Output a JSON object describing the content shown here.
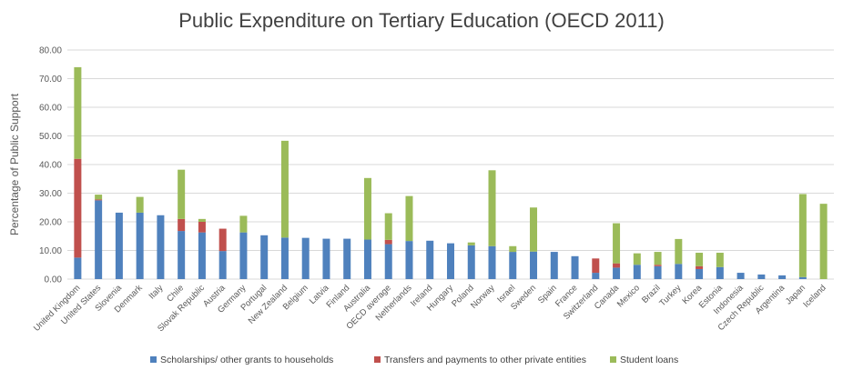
{
  "chart_data": {
    "type": "bar",
    "stacked": true,
    "title": "Public Expenditure on Tertiary Education (OECD 2011)",
    "xlabel": "",
    "ylabel": "Percentage of Public Support",
    "ylim": [
      0,
      80
    ],
    "yticks": [
      "0.00",
      "10.00",
      "20.00",
      "30.00",
      "40.00",
      "50.00",
      "60.00",
      "70.00",
      "80.00"
    ],
    "grid": true,
    "legend_position": "bottom",
    "categories": [
      "United Kingdom",
      "United States",
      "Slovenia",
      "Denmark",
      "Italy",
      "Chile",
      "Slovak Republic",
      "Austria",
      "Germany",
      "Portugal",
      "New Zealand",
      "Belgium",
      "Latvia",
      "Finland",
      "Australia",
      "OECD average",
      "Netherlands",
      "Ireland",
      "Hungary",
      "Poland",
      "Norway",
      "Israel",
      "Sweden",
      "Spain",
      "France",
      "Switzerland",
      "Canada",
      "Mexico",
      "Brazil",
      "Turkey",
      "Korea",
      "Estonia",
      "Indonesia",
      "Czech Republic",
      "Argentina",
      "Japan",
      "Iceland"
    ],
    "series": [
      {
        "name": "Scholarships/ other grants to households",
        "color": "#4f81bd",
        "values": [
          7.5,
          27.5,
          23.2,
          23.2,
          22.3,
          16.8,
          16.3,
          9.8,
          16.3,
          15.3,
          14.5,
          14.4,
          14.1,
          14.1,
          13.8,
          12.2,
          13.3,
          13.4,
          12.5,
          11.8,
          11.5,
          9.5,
          9.6,
          9.5,
          8.0,
          2.2,
          4.0,
          5.0,
          4.5,
          5.3,
          3.5,
          4.2,
          2.2,
          1.6,
          1.3,
          0.7,
          0.0
        ]
      },
      {
        "name": "Transfers and payments to other private entities",
        "color": "#c0504d",
        "values": [
          34.5,
          0.3,
          0.0,
          0.0,
          0.0,
          4.2,
          3.7,
          7.8,
          0.0,
          0.0,
          0.0,
          0.0,
          0.0,
          0.0,
          0.0,
          1.5,
          0.0,
          0.0,
          0.0,
          0.0,
          0.0,
          0.0,
          0.0,
          0.0,
          0.0,
          5.0,
          1.5,
          0.0,
          0.5,
          0.0,
          1.0,
          0.0,
          0.0,
          0.0,
          0.0,
          0.0,
          0.0
        ]
      },
      {
        "name": "Student loans",
        "color": "#9bbb59",
        "values": [
          32.0,
          1.7,
          0.0,
          5.5,
          0.0,
          17.2,
          1.0,
          0.0,
          5.8,
          0.0,
          33.8,
          0.0,
          0.0,
          0.0,
          21.5,
          9.3,
          15.7,
          0.0,
          0.0,
          1.0,
          26.5,
          2.0,
          15.4,
          0.0,
          0.0,
          0.0,
          14.0,
          4.0,
          4.5,
          8.7,
          4.7,
          5.0,
          0.0,
          0.0,
          0.0,
          29.0,
          26.3
        ]
      }
    ]
  }
}
